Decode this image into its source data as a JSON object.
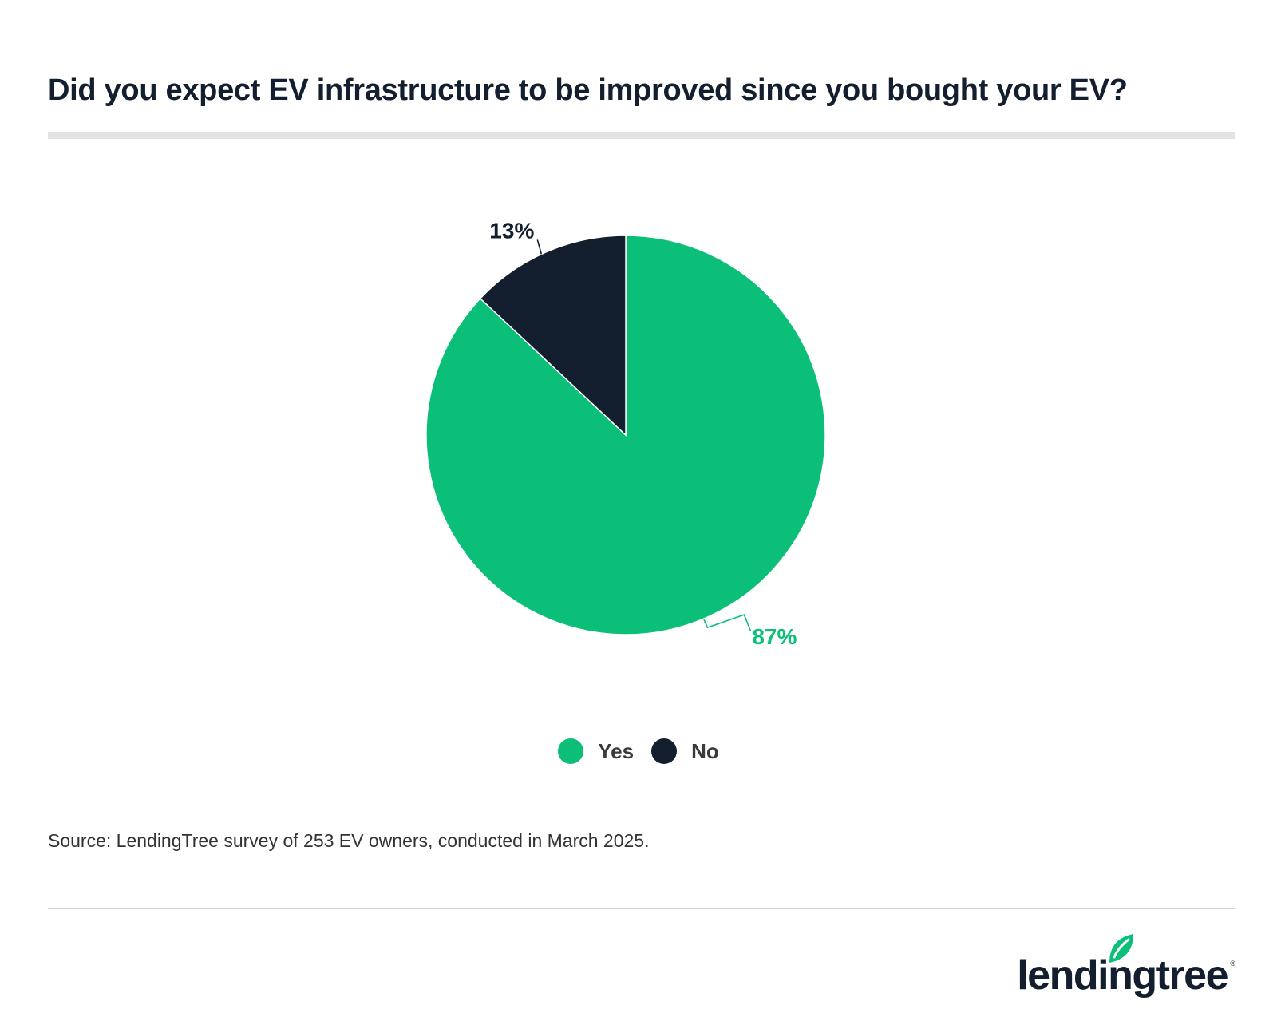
{
  "title": "Did you expect EV infrastructure to be improved since you bought your EV?",
  "source": "Source: LendingTree survey of 253 EV owners, conducted in March 2025.",
  "brand": {
    "name": "lendingtree",
    "registered_mark": "®",
    "colors": {
      "green": "#0bbf78",
      "navy": "#131f2e"
    }
  },
  "chart_data": {
    "type": "pie",
    "title": "Did you expect EV infrastructure to be improved since you bought your EV?",
    "start_angle": "12 o'clock",
    "direction": "clockwise",
    "legend_position": "bottom-center",
    "slices": [
      {
        "label": "Yes",
        "value": 87,
        "display": "87%",
        "color": "#0bbf78"
      },
      {
        "label": "No",
        "value": 13,
        "display": "13%",
        "color": "#131f2e"
      }
    ]
  },
  "legend": {
    "items": [
      {
        "label": "Yes",
        "color": "#0bbf78"
      },
      {
        "label": "No",
        "color": "#131f2e"
      }
    ]
  }
}
